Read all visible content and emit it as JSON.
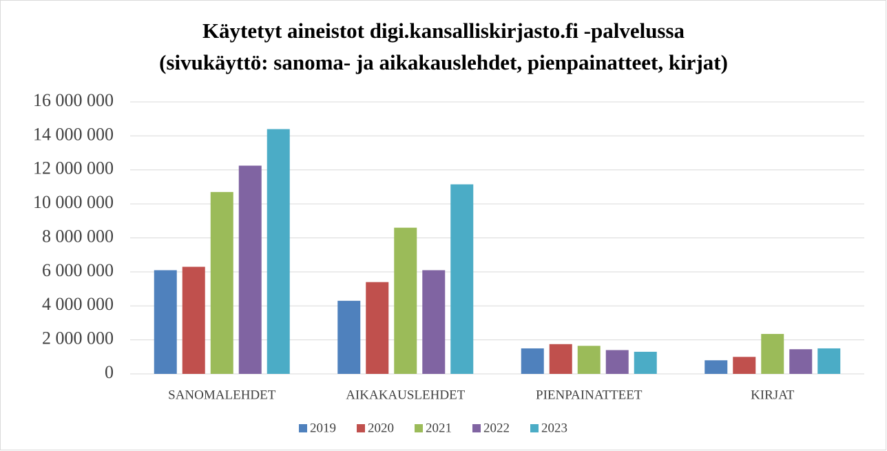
{
  "chart_data": {
    "type": "bar",
    "title": [
      "Käytetyt aineistot digi.kansalliskirjasto.fi -palvelussa",
      "(sivukäyttö: sanoma- ja aikakauslehdet, pienpainatteet, kirjat)"
    ],
    "categories": [
      "SANOMALEHDET",
      "AIKAKAUSLEHDET",
      "PIENPAINATTEET",
      "KIRJAT"
    ],
    "series": [
      {
        "name": "2019",
        "color": "#4f81bd",
        "values": [
          6100000,
          4300000,
          1500000,
          800000
        ]
      },
      {
        "name": "2020",
        "color": "#c0504d",
        "values": [
          6300000,
          5400000,
          1750000,
          1000000
        ]
      },
      {
        "name": "2021",
        "color": "#9bbb59",
        "values": [
          10700000,
          8600000,
          1650000,
          2350000
        ]
      },
      {
        "name": "2022",
        "color": "#8064a2",
        "values": [
          12250000,
          6100000,
          1400000,
          1450000
        ]
      },
      {
        "name": "2023",
        "color": "#4bacc6",
        "values": [
          14400000,
          11150000,
          1300000,
          1500000
        ]
      }
    ],
    "ylim": [
      0,
      16000000
    ],
    "yticks": [
      0,
      {
        "value": 2000000,
        "label": "2 000 000"
      },
      {
        "value": 4000000,
        "label": "4 000 000"
      },
      {
        "value": 6000000,
        "label": "6 000 000"
      },
      {
        "value": 8000000,
        "label": "8 000 000"
      },
      {
        "value": 10000000,
        "label": "10 000 000"
      },
      {
        "value": 12000000,
        "label": "12 000 000"
      },
      {
        "value": 14000000,
        "label": "14 000 000"
      },
      {
        "value": 16000000,
        "label": "16 000 000"
      }
    ],
    "grid": true,
    "legend": "bottom"
  }
}
